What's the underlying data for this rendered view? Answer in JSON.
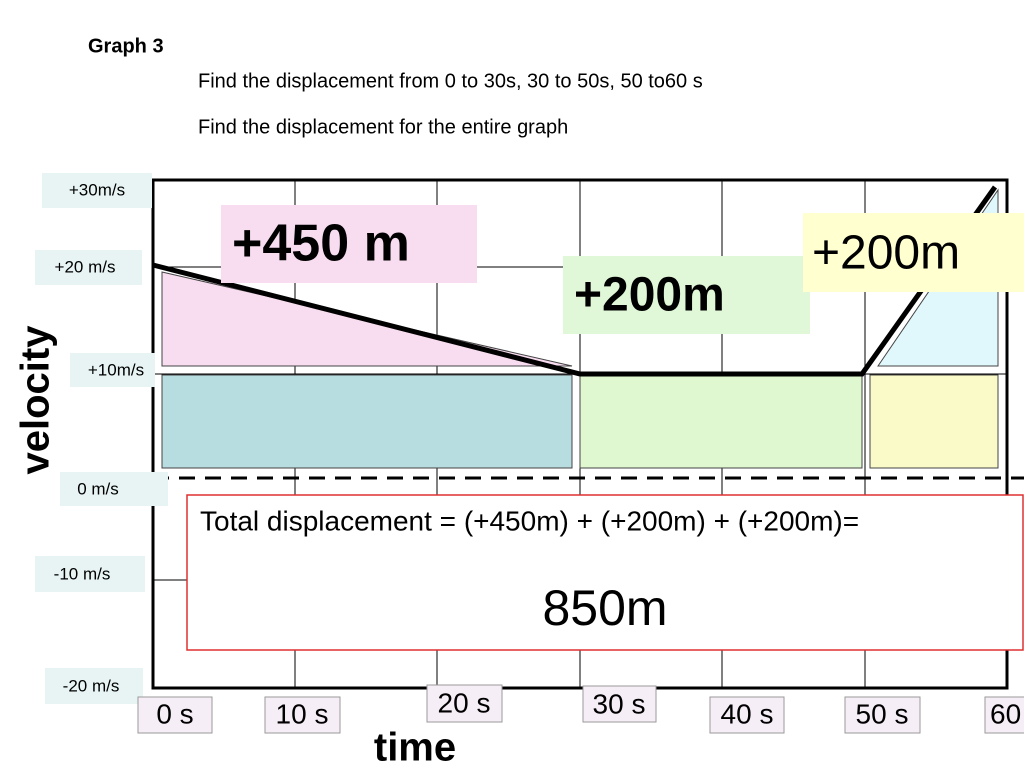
{
  "header": {
    "title": "Graph 3",
    "instructions": [
      "Find the displacement from 0 to 30s, 30 to 50s, 50 to60 s",
      "Find the displacement for the entire graph"
    ]
  },
  "y_axis": {
    "label": "velocity",
    "tick_labels": [
      "+30m/s",
      "+20 m/s",
      "+10m/s",
      "0 m/s",
      "-10 m/s",
      "-20 m/s"
    ]
  },
  "x_axis": {
    "label": "time",
    "tick_labels": [
      "0 s",
      "10 s",
      "20 s",
      "30 s",
      "40 s",
      "50 s",
      "60"
    ]
  },
  "areas": [
    "+450 m",
    "+200m",
    "+200m"
  ],
  "total": {
    "equation": "Total displacement = (+450m) + (+200m) + (+200m)=",
    "result": "850m"
  }
}
